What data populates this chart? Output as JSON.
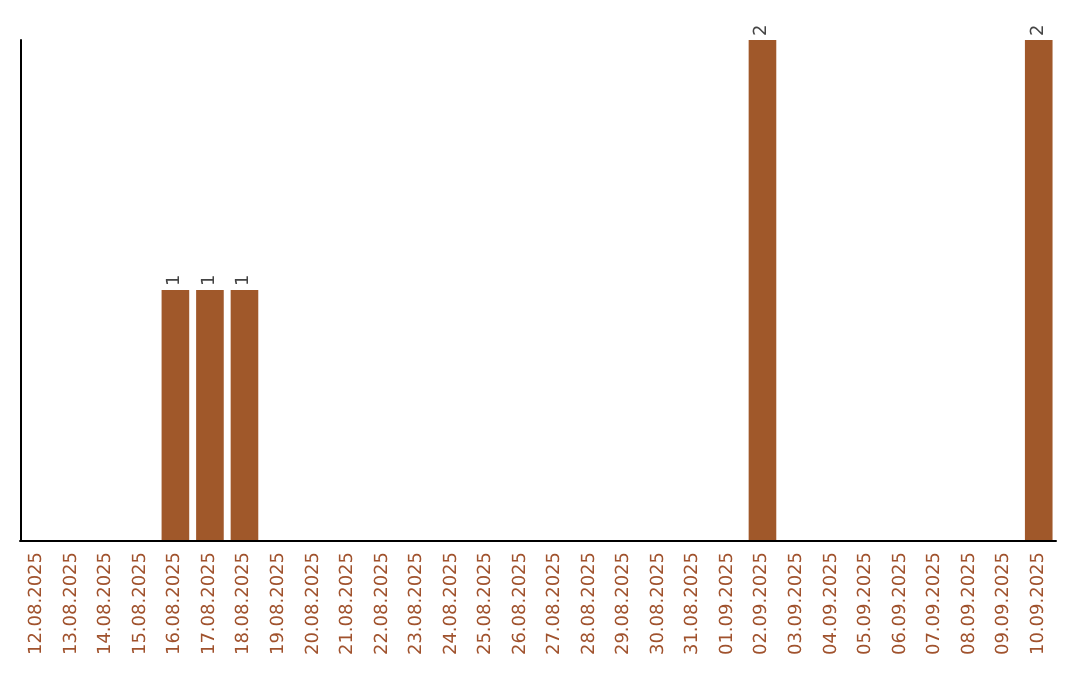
{
  "chart_data": {
    "type": "bar",
    "categories": [
      "12.08.2025",
      "13.08.2025",
      "14.08.2025",
      "15.08.2025",
      "16.08.2025",
      "17.08.2025",
      "18.08.2025",
      "19.08.2025",
      "20.08.2025",
      "21.08.2025",
      "22.08.2025",
      "23.08.2025",
      "24.08.2025",
      "25.08.2025",
      "26.08.2025",
      "27.08.2025",
      "28.08.2025",
      "29.08.2025",
      "30.08.2025",
      "31.08.2025",
      "01.09.2025",
      "02.09.2025",
      "03.09.2025",
      "04.09.2025",
      "05.09.2025",
      "06.09.2025",
      "07.09.2025",
      "08.09.2025",
      "09.09.2025",
      "10.09.2025"
    ],
    "values": [
      0,
      0,
      0,
      0,
      1,
      1,
      1,
      0,
      0,
      0,
      0,
      0,
      0,
      0,
      0,
      0,
      0,
      0,
      0,
      0,
      0,
      2,
      0,
      0,
      0,
      0,
      0,
      0,
      0,
      2
    ],
    "value_labels": [
      null,
      null,
      null,
      null,
      "1",
      "1",
      "1",
      null,
      null,
      null,
      null,
      null,
      null,
      null,
      null,
      null,
      null,
      null,
      null,
      null,
      null,
      "2",
      null,
      null,
      null,
      null,
      null,
      null,
      null,
      "2"
    ],
    "color": "#a0582a",
    "tick_labels": "x"
  }
}
